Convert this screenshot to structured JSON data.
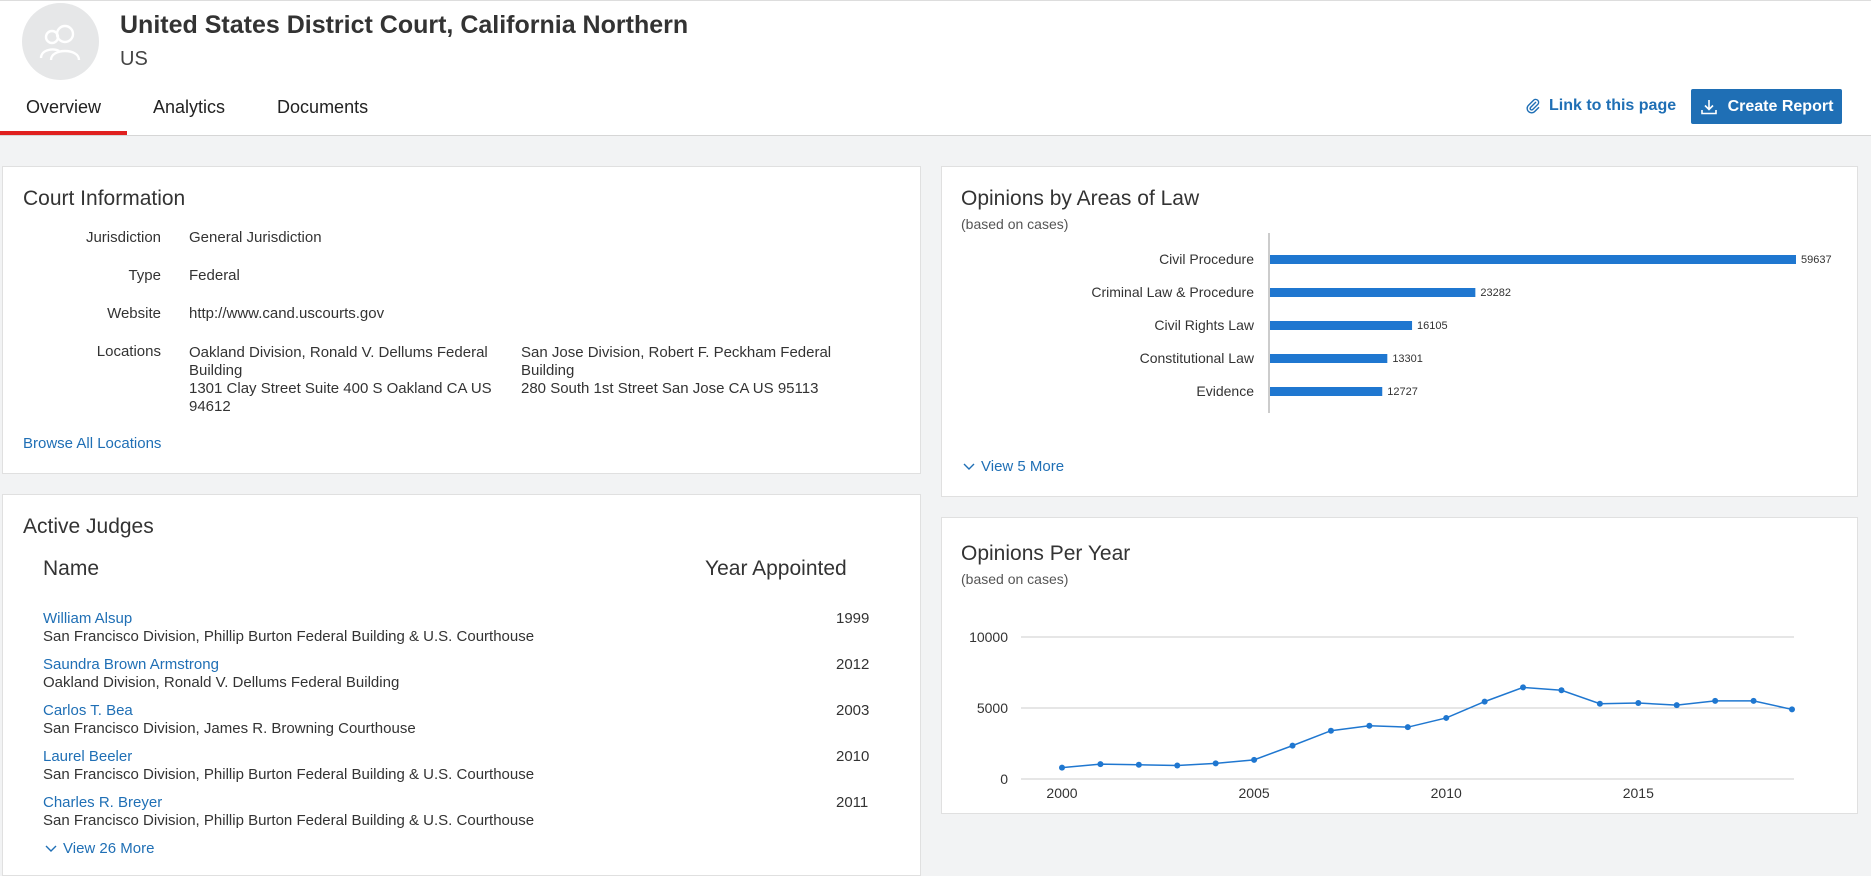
{
  "header": {
    "title": "United States District Court, California Northern",
    "country": "US",
    "tabs": [
      "Overview",
      "Analytics",
      "Documents"
    ],
    "link_label": "Link to this page",
    "report_label": "Create Report"
  },
  "court_info": {
    "title": "Court Information",
    "jurisdiction_label": "Jurisdiction",
    "jurisdiction": "General Jurisdiction",
    "type_label": "Type",
    "type": "Federal",
    "website_label": "Website",
    "website": "http://www.cand.uscourts.gov",
    "locations_label": "Locations",
    "locations": [
      {
        "name_line1": "Oakland Division, Ronald V. Dellums Federal",
        "name_line2": "Building",
        "addr_line1": "1301 Clay Street Suite 400 S Oakland CA US",
        "addr_line2": "94612"
      },
      {
        "name_line1": "San Jose Division, Robert F. Peckham Federal",
        "name_line2": "Building",
        "addr_line1": "280 South 1st Street San Jose CA US 95113",
        "addr_line2": ""
      }
    ],
    "browse_label": "Browse All Locations"
  },
  "judges": {
    "title": "Active Judges",
    "col_name": "Name",
    "col_year": "Year Appointed",
    "rows": [
      {
        "name": "William Alsup",
        "division": "San Francisco Division, Phillip Burton Federal Building & U.S. Courthouse",
        "year": "1999"
      },
      {
        "name": "Saundra Brown Armstrong",
        "division": "Oakland Division, Ronald V. Dellums Federal Building",
        "year": "2012"
      },
      {
        "name": "Carlos T. Bea",
        "division": "San Francisco Division, James R. Browning Courthouse",
        "year": "2003"
      },
      {
        "name": "Laurel Beeler",
        "division": "San Francisco Division, Phillip Burton Federal Building & U.S. Courthouse",
        "year": "2010"
      },
      {
        "name": "Charles R. Breyer",
        "division": "San Francisco Division, Phillip Burton Federal Building & U.S. Courthouse",
        "year": "2011"
      }
    ],
    "more_label": "View 26 More"
  },
  "areas": {
    "title": "Opinions by Areas of Law",
    "subtitle": "(based on cases)",
    "more_label": "View 5 More"
  },
  "per_year": {
    "title": "Opinions Per Year",
    "subtitle": "(based on cases)"
  },
  "chart_data": [
    {
      "type": "bar",
      "orientation": "horizontal",
      "categories": [
        "Civil Procedure",
        "Criminal Law & Procedure",
        "Civil Rights Law",
        "Constitutional Law",
        "Evidence"
      ],
      "values": [
        59637,
        23282,
        16105,
        13301,
        12727
      ],
      "color": "#1f77d0"
    },
    {
      "type": "line",
      "x": [
        2000,
        2001,
        2002,
        2003,
        2004,
        2005,
        2006,
        2007,
        2008,
        2009,
        2010,
        2011,
        2012,
        2013,
        2014,
        2015,
        2016,
        2017,
        2018,
        2019
      ],
      "y": [
        800,
        1050,
        1000,
        950,
        1100,
        1350,
        2350,
        3400,
        3750,
        3650,
        4300,
        5450,
        6450,
        6250,
        5300,
        5350,
        5200,
        5500,
        5500,
        4900
      ],
      "xticks": [
        2000,
        2005,
        2010,
        2015
      ],
      "yticks": [
        0,
        5000,
        10000
      ],
      "ylim": [
        0,
        10000
      ],
      "grid": true,
      "color": "#1f77d0"
    }
  ]
}
